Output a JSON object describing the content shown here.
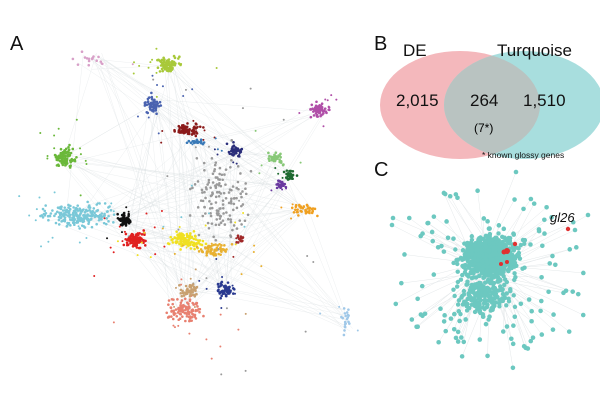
{
  "panels": {
    "a": "A",
    "b": "B",
    "c": "C"
  },
  "venn": {
    "left_label": "DE",
    "right_label": "Turquoise",
    "left_only": "2,015",
    "overlap": "264",
    "overlap_known": "(7*)",
    "right_only": "1,510",
    "footnote": "* known glossy genes",
    "left_color": "#f4b8bc",
    "right_color": "#a8dede",
    "overlap_color": "#b9c3c1"
  },
  "network_c": {
    "highlight_gene": "gl26",
    "node_color": "#6cc8c0",
    "highlight_color": "#e03030"
  },
  "network_a": {
    "module_colors": [
      "#a8c93a",
      "#4a63b0",
      "#8b1a1a",
      "#b04fa8",
      "#d8a0c8",
      "#6ab83a",
      "#3a7ab8",
      "#2a2e7a",
      "#9a9a9a",
      "#88c878",
      "#1e6a30",
      "#6a3aa0",
      "#f0a020",
      "#7ac8d8",
      "#111111",
      "#e02020",
      "#f0e020",
      "#e8b030",
      "#a02828",
      "#2a3a90",
      "#e88070",
      "#c8a070",
      "#a0c8e8"
    ]
  }
}
